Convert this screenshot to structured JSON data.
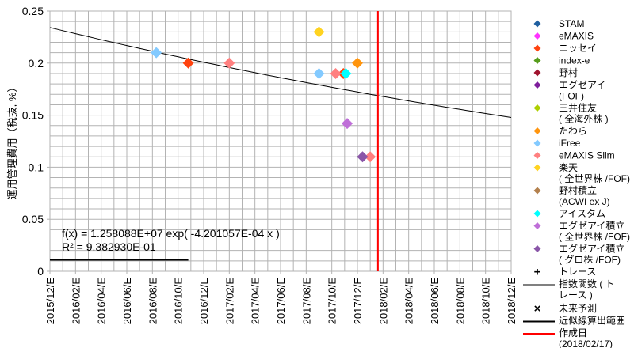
{
  "chart_data": {
    "type": "scatter",
    "title": "",
    "xlabel": "",
    "ylabel": "運用管理費用（税抜, %）",
    "ylim": [
      0,
      0.25
    ],
    "yticks": [
      "0",
      "0.05",
      "0.1",
      "0.15",
      "0.2",
      "0.25"
    ],
    "ytick_values": [
      0,
      0.05,
      0.1,
      0.15,
      0.2,
      0.25
    ],
    "x_unit": "months since 2015/12 end",
    "xlim": [
      0,
      36
    ],
    "xticks": [
      "2015/12/E",
      "2016/02/E",
      "2016/04/E",
      "2016/06/E",
      "2016/08/E",
      "2016/10/E",
      "2016/12/E",
      "2017/02/E",
      "2017/04/E",
      "2017/06/E",
      "2017/08/E",
      "2017/10/E",
      "2017/12/E",
      "2018/02/E",
      "2018/04/E",
      "2018/06/E",
      "2018/08/E",
      "2018/10/E",
      "2018/12/E"
    ],
    "grid": true,
    "legend_position": "right",
    "series": [
      {
        "name": "STAM",
        "color": "#1f5fa0",
        "points": []
      },
      {
        "name": "eMAXIS",
        "color": "#ff33ff",
        "points": []
      },
      {
        "name": "ニッセイ",
        "color": "#ff420e",
        "points": [
          [
            10.8,
            0.2
          ],
          [
            22.9,
            0.19
          ]
        ]
      },
      {
        "name": "index-e",
        "color": "#579d1c",
        "points": []
      },
      {
        "name": "野村",
        "color": "#a0132e",
        "points": []
      },
      {
        "name": "エグゼアイ\n(FOF)",
        "color": "#7e1e9c",
        "points": []
      },
      {
        "name": "三井住友\n( 全海外株 )",
        "color": "#aecf00",
        "points": []
      },
      {
        "name": "たわら",
        "color": "#ff950e",
        "points": [
          [
            24.0,
            0.2
          ]
        ]
      },
      {
        "name": "iFree",
        "color": "#83caff",
        "points": [
          [
            8.3,
            0.21
          ],
          [
            21.0,
            0.19
          ]
        ]
      },
      {
        "name": "eMAXIS Slim",
        "color": "#ff8080",
        "points": [
          [
            14.0,
            0.2
          ],
          [
            22.3,
            0.19
          ],
          [
            25.0,
            0.11
          ]
        ]
      },
      {
        "name": "楽天\n( 全世界株 /FOF)",
        "color": "#ffd320",
        "points": [
          [
            21.0,
            0.23
          ]
        ]
      },
      {
        "name": "野村積立\n(ACWI ex J)",
        "color": "#b3804d",
        "points": []
      },
      {
        "name": "アイスタム",
        "color": "#00ffff",
        "points": [
          [
            23.1,
            0.19
          ]
        ]
      },
      {
        "name": "エグゼアイ積立\n( 全世界株 /FOF)",
        "color": "#bf6fd8",
        "points": [
          [
            23.2,
            0.142
          ]
        ]
      },
      {
        "name": "エグゼアイ積立\n( グロ株 /FOF)",
        "color": "#8a56a8",
        "points": [
          [
            24.4,
            0.11
          ]
        ]
      }
    ],
    "extra_legend": [
      {
        "name": "トレース",
        "symbol": "+",
        "color": "#000000"
      },
      {
        "name": "指数関数 ( ト\nレース )",
        "symbol": "line",
        "color": "#000000"
      },
      {
        "name": "未来予測",
        "symbol": "×",
        "color": "#000000"
      },
      {
        "name": "近似線算出範囲",
        "symbol": "thickline",
        "color": "#000000"
      },
      {
        "name": "作成日\n(2018/02/17)",
        "symbol": "redline",
        "color": "#ff0000"
      }
    ],
    "trendline": {
      "type": "exponential",
      "a": 12580880,
      "b": -0.0004201057,
      "x_origin_serial": 42369,
      "days_per_month": 30.44,
      "equation": "f(x) = 1.258088E+07 exp( -4.201057E-04 x )",
      "r2": "R² = 9.382930E-01"
    },
    "fit_range": {
      "x": [
        0,
        10.8
      ],
      "y": 0.011
    },
    "creation_date_x": 25.6
  }
}
